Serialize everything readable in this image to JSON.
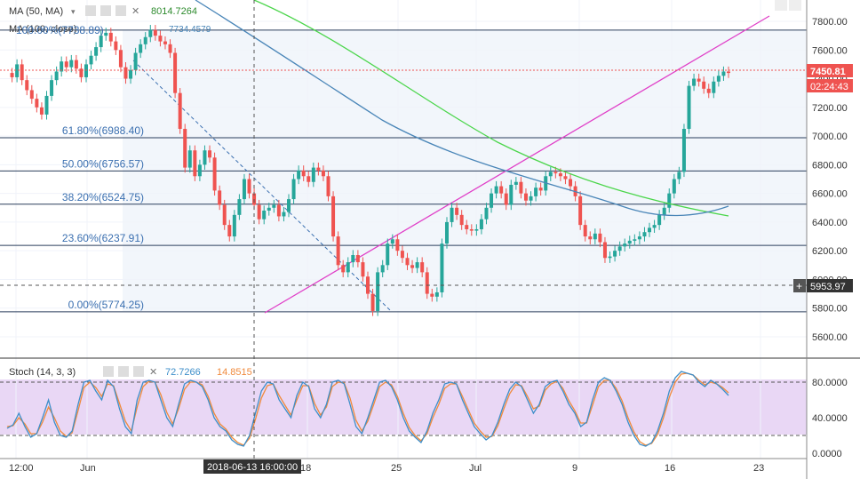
{
  "indicators": {
    "ma50": {
      "label": "MA (50, MA)",
      "value": "8014.7264",
      "color": "#2e8b2e"
    },
    "ma100": {
      "label": "MA (100, close)",
      "value": "7734.4579",
      "color": "#4a86b8"
    }
  },
  "price_axis": {
    "ticks": [
      "7800.00",
      "7600.00",
      "7400.00",
      "7200.00",
      "7000.00",
      "6800.00",
      "6600.00",
      "6400.00",
      "6200.00",
      "6000.00",
      "5800.00",
      "5600.00"
    ],
    "last_price": "7450.81",
    "countdown": "02:24:43",
    "crosshair_price": "5953.97",
    "last_price_color": "#ef5350"
  },
  "time_axis": {
    "ticks": [
      "12:00",
      "Jun",
      "18",
      "25",
      "Jul",
      "9",
      "16",
      "23"
    ],
    "crosshair_time": "2018-06-13 16:00:00"
  },
  "fibonacci": {
    "top_label": "100.00%(7738.89)",
    "levels": [
      {
        "label": "61.80%(6988.40)",
        "value": 6988.4
      },
      {
        "label": "50.00%(6756.57)",
        "value": 6756.57
      },
      {
        "label": "38.20%(6524.75)",
        "value": 6524.75
      },
      {
        "label": "23.60%(6237.91)",
        "value": 6237.91
      },
      {
        "label": "0.00%(5774.25)",
        "value": 5774.25
      }
    ],
    "top_value": 7738.89
  },
  "stoch": {
    "label": "Stoch (14, 3, 3)",
    "k_value": "72.7266",
    "d_value": "14.8515",
    "k_color": "#3d8ec9",
    "d_color": "#f08a3c",
    "ticks": [
      "80.0000",
      "40.0000",
      "0.0000"
    ],
    "k": [
      28,
      32,
      45,
      30,
      18,
      22,
      40,
      60,
      35,
      20,
      18,
      25,
      55,
      80,
      82,
      70,
      60,
      82,
      75,
      50,
      30,
      22,
      60,
      80,
      82,
      80,
      60,
      40,
      30,
      55,
      78,
      82,
      80,
      75,
      60,
      40,
      30,
      25,
      15,
      10,
      8,
      20,
      45,
      70,
      80,
      78,
      60,
      50,
      40,
      65,
      80,
      75,
      50,
      40,
      55,
      80,
      82,
      78,
      55,
      30,
      22,
      40,
      60,
      80,
      82,
      75,
      60,
      40,
      25,
      18,
      12,
      25,
      45,
      60,
      78,
      80,
      78,
      60,
      45,
      30,
      22,
      15,
      20,
      35,
      55,
      72,
      80,
      75,
      60,
      45,
      55,
      75,
      80,
      82,
      70,
      55,
      45,
      30,
      35,
      60,
      80,
      85,
      82,
      70,
      55,
      35,
      20,
      10,
      8,
      12,
      25,
      45,
      70,
      85,
      92,
      90,
      88,
      80,
      75,
      82,
      78,
      72,
      65
    ],
    "d": [
      30,
      31,
      40,
      33,
      22,
      22,
      35,
      52,
      40,
      25,
      19,
      23,
      48,
      74,
      80,
      74,
      64,
      78,
      76,
      56,
      36,
      25,
      52,
      75,
      81,
      80,
      66,
      46,
      33,
      50,
      72,
      80,
      80,
      77,
      64,
      45,
      33,
      27,
      18,
      12,
      9,
      17,
      38,
      62,
      76,
      78,
      65,
      54,
      43,
      60,
      76,
      76,
      56,
      43,
      52,
      75,
      80,
      79,
      62,
      37,
      25,
      36,
      55,
      75,
      80,
      77,
      64,
      45,
      29,
      20,
      14,
      22,
      40,
      55,
      73,
      78,
      78,
      64,
      49,
      34,
      25,
      18,
      19,
      31,
      50,
      67,
      77,
      76,
      64,
      50,
      53,
      71,
      78,
      81,
      73,
      59,
      48,
      34,
      34,
      54,
      75,
      82,
      82,
      73,
      59,
      40,
      24,
      13,
      9,
      11,
      21,
      40,
      63,
      80,
      89,
      90,
      88,
      82,
      77,
      80,
      78,
      74,
      68
    ],
    "upper": 80,
    "lower": 20
  },
  "chart_data": {
    "type": "candlestick",
    "title": "",
    "ylim": [
      5480,
      7920
    ],
    "y_ticks": [
      7800,
      7600,
      7400,
      7200,
      7000,
      6800,
      6600,
      6400,
      6200,
      6000,
      5800,
      5600
    ],
    "x_tick_labels": [
      "12:00",
      "Jun",
      "18",
      "25",
      "Jul",
      "9",
      "16",
      "23"
    ],
    "series": [
      {
        "name": "price",
        "values": [
          7440,
          7410,
          7500,
          7390,
          7320,
          7260,
          7200,
          7150,
          7280,
          7390,
          7450,
          7520,
          7480,
          7530,
          7470,
          7410,
          7500,
          7560,
          7620,
          7700,
          7720,
          7660,
          7600,
          7480,
          7400,
          7460,
          7580,
          7640,
          7690,
          7740,
          7700,
          7660,
          7640,
          7580,
          7300,
          7050,
          6780,
          6900,
          6720,
          6800,
          6900,
          6850,
          6620,
          6520,
          6380,
          6300,
          6450,
          6560,
          6700,
          6600,
          6520,
          6420,
          6480,
          6500,
          6520,
          6440,
          6470,
          6560,
          6700,
          6760,
          6720,
          6680,
          6780,
          6760,
          6720,
          6580,
          6300,
          6100,
          6050,
          6120,
          6170,
          6120,
          6020,
          5900,
          5780,
          6050,
          6100,
          6250,
          6280,
          6200,
          6150,
          6100,
          6080,
          6120,
          6050,
          5900,
          5880,
          5910,
          6250,
          6400,
          6500,
          6450,
          6380,
          6350,
          6340,
          6350,
          6420,
          6500,
          6600,
          6650,
          6600,
          6520,
          6660,
          6680,
          6600,
          6550,
          6580,
          6640,
          6620,
          6720,
          6750,
          6740,
          6720,
          6700,
          6650,
          6580,
          6380,
          6300,
          6280,
          6320,
          6260,
          6150,
          6160,
          6200,
          6230,
          6250,
          6270,
          6280,
          6300,
          6330,
          6360,
          6380,
          6450,
          6500,
          6600,
          6700,
          6750,
          7050,
          7350,
          7400,
          7380,
          7330,
          7300,
          7380,
          7420,
          7450,
          7440
        ]
      },
      {
        "name": "MA (50, MA)",
        "values": [
          8014.7,
          7850,
          7700,
          7550,
          7400,
          7260,
          7130,
          7010,
          6890,
          6780,
          6680,
          6580,
          6480,
          6440
        ]
      },
      {
        "name": "MA (100, close)",
        "values": [
          7734.5,
          7640,
          7520,
          7390,
          7260,
          7130,
          7000,
          6880,
          6780,
          6700,
          6620,
          6550,
          6450,
          6410,
          6450,
          6490
        ]
      }
    ]
  }
}
